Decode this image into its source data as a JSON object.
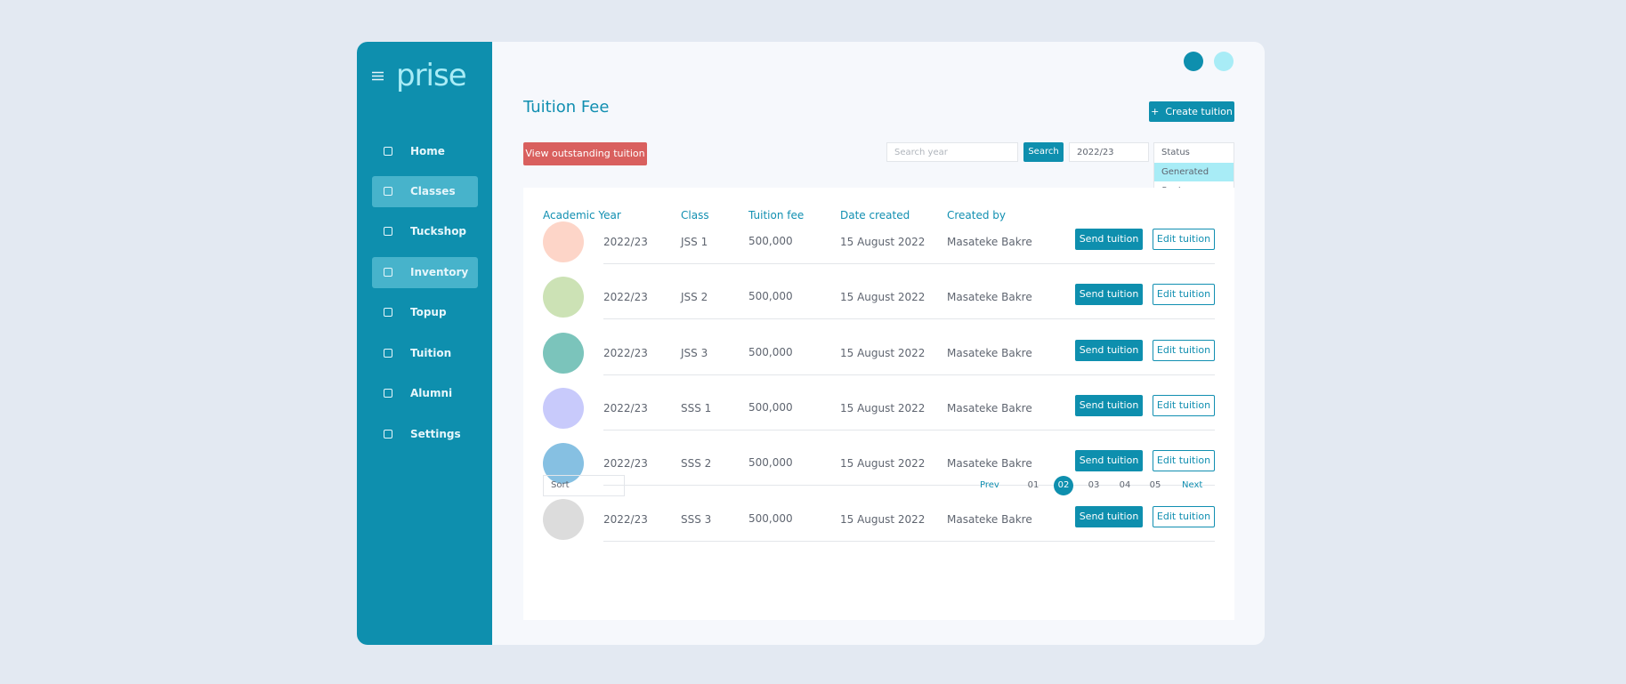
{
  "sidebar": {
    "logo": "prise",
    "nav": [
      "Home",
      "Classes",
      "Tuckshop",
      "Inventory",
      "Topup",
      "Tuition",
      "Alumni",
      "Settings"
    ]
  },
  "header": {
    "title": "Tuition Fee",
    "create_button": "Create tuition"
  },
  "toolbar": {
    "outstanding_button": "View outstanding tuition",
    "search_placeholder": "Search year",
    "search_button": "Search",
    "year_select": "2022/23",
    "status": {
      "label": "Status",
      "options": [
        "Generated",
        "Sent"
      ]
    }
  },
  "table": {
    "headers": [
      "Academic Year",
      "Class",
      "Tuition fee",
      "Date created",
      "Created by"
    ],
    "rows": [
      [
        "2022/23",
        "JSS 1",
        "500,000",
        "15 August 2022",
        "Masateke Bakre"
      ],
      [
        "2022/23",
        "JSS 2",
        "500,000",
        "15 August 2022",
        "Masateke Bakre"
      ],
      [
        "2022/23",
        "JSS 3",
        "500,000",
        "15 August 2022",
        "Masateke Bakre"
      ],
      [
        "2022/23",
        "SSS 1",
        "500,000",
        "15 August 2022",
        "Masateke Bakre"
      ],
      [
        "2022/23",
        "SSS 2",
        "500,000",
        "15 August 2022",
        "Masateke Bakre"
      ],
      [
        "2022/23",
        "SSS 3",
        "500,000",
        "15 August 2022",
        "Masateke Bakre"
      ]
    ],
    "actions": {
      "send": "Send tuition",
      "edit": "Edit tuition"
    }
  },
  "pagination": {
    "sort": "Sort",
    "prev": "Prev",
    "pages": [
      "01",
      "02",
      "03",
      "04",
      "05"
    ],
    "next": "Next"
  }
}
